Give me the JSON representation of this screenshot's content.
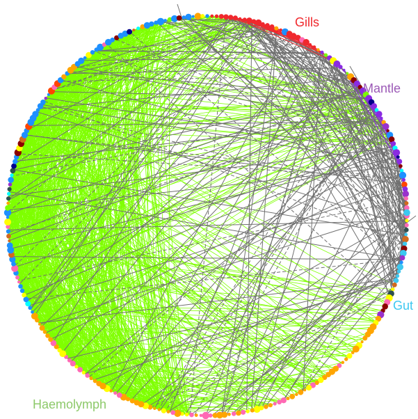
{
  "labels": {
    "gills": "Gills",
    "mantle": "Mantle",
    "gut": "Gut",
    "haemolymph": "Haemolymph"
  },
  "colors": {
    "gills": "#f0282d",
    "mantle": "#9b59b6",
    "gut": "#3cc8f0",
    "haemolymph": "#8dc96a",
    "haemolymph_edges": "#7fff00",
    "inter_tissue_edges": "#707070",
    "node_palette": [
      "#ffa500",
      "#1e90ff",
      "#ff69b4",
      "#ff4500",
      "#ffff00",
      "#2f4f4f",
      "#8b0000",
      "#00008b",
      "#00ffff",
      "#7cfc00",
      "#9932cc",
      "#d2691e"
    ]
  },
  "edge_styles": [
    "solid",
    "dashed"
  ]
}
